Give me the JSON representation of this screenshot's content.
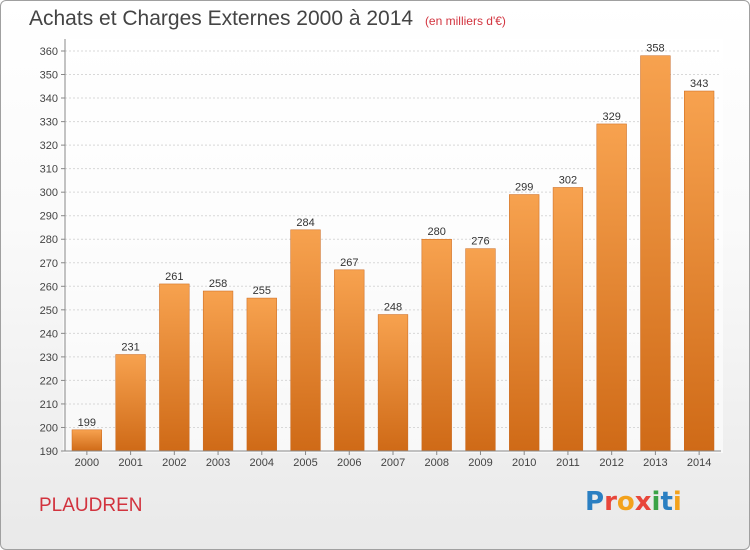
{
  "header": {
    "title": "Achats et Charges Externes 2000 à 2014",
    "subtitle": "(en milliers d'€)"
  },
  "footer": {
    "commune": "PLAUDREN",
    "brand": "Proxiti"
  },
  "colors": {
    "bar_top": "#f7a24f",
    "bar_bottom": "#cf6a17",
    "title_red": "#d2333e"
  },
  "chart_data": {
    "type": "bar",
    "title": "Achats et Charges Externes 2000 à 2014",
    "subtitle": "(en milliers d'€)",
    "categories": [
      "2000",
      "2001",
      "2002",
      "2003",
      "2004",
      "2005",
      "2006",
      "2007",
      "2008",
      "2009",
      "2010",
      "2011",
      "2012",
      "2013",
      "2014"
    ],
    "values": [
      199,
      231,
      261,
      258,
      255,
      284,
      267,
      248,
      280,
      276,
      299,
      302,
      329,
      358,
      343
    ],
    "ylim": [
      190,
      360
    ],
    "yticks": [
      190,
      200,
      210,
      220,
      230,
      240,
      250,
      260,
      270,
      280,
      290,
      300,
      310,
      320,
      330,
      340,
      350,
      360
    ],
    "grid": true,
    "data_labels": true,
    "legend": "none"
  }
}
